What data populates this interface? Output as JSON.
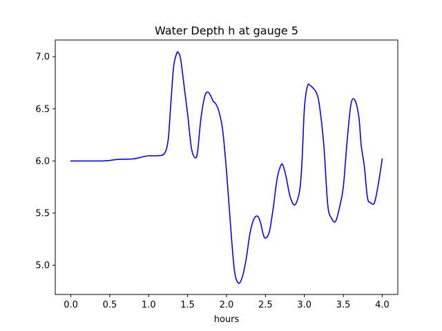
{
  "chart_data": {
    "type": "line",
    "title": "Water Depth h at gauge 5",
    "xlabel": "hours",
    "ylabel": "",
    "xlim": [
      -0.2,
      4.2
    ],
    "ylim": [
      4.72,
      7.16
    ],
    "grid": false,
    "x_ticks": [
      0.0,
      0.5,
      1.0,
      1.5,
      2.0,
      2.5,
      3.0,
      3.5,
      4.0
    ],
    "x_tick_labels": [
      "0.0",
      "0.5",
      "1.0",
      "1.5",
      "2.0",
      "2.5",
      "3.0",
      "3.5",
      "4.0"
    ],
    "y_ticks": [
      5.0,
      5.5,
      6.0,
      6.5,
      7.0
    ],
    "y_tick_labels": [
      "5.0",
      "5.5",
      "6.0",
      "6.5",
      "7.0"
    ],
    "series": [
      {
        "color": "#0000ff",
        "x": [
          0.0,
          0.2,
          0.4,
          0.5,
          0.6,
          0.8,
          0.9,
          1.0,
          1.1,
          1.2,
          1.25,
          1.28,
          1.32,
          1.36,
          1.38,
          1.41,
          1.45,
          1.5,
          1.55,
          1.6,
          1.63,
          1.67,
          1.72,
          1.76,
          1.8,
          1.83,
          1.86,
          1.9,
          1.95,
          2.0,
          2.05,
          2.1,
          2.15,
          2.2,
          2.25,
          2.3,
          2.35,
          2.4,
          2.44,
          2.47,
          2.5,
          2.55,
          2.6,
          2.65,
          2.7,
          2.73,
          2.77,
          2.82,
          2.88,
          2.94,
          2.97,
          3.0,
          3.04,
          3.08,
          3.11,
          3.15,
          3.19,
          3.25,
          3.3,
          3.35,
          3.4,
          3.45,
          3.5,
          3.55,
          3.6,
          3.65,
          3.7,
          3.73,
          3.77,
          3.81,
          3.85,
          3.9,
          3.95,
          4.0
        ],
        "y": [
          6.0,
          6.0,
          6.0,
          6.005,
          6.015,
          6.02,
          6.035,
          6.05,
          6.05,
          6.07,
          6.2,
          6.5,
          6.9,
          7.03,
          7.04,
          6.98,
          6.75,
          6.45,
          6.12,
          6.03,
          6.1,
          6.4,
          6.62,
          6.66,
          6.62,
          6.57,
          6.55,
          6.48,
          6.3,
          5.9,
          5.4,
          4.96,
          4.83,
          4.88,
          5.05,
          5.3,
          5.44,
          5.47,
          5.4,
          5.3,
          5.26,
          5.32,
          5.55,
          5.83,
          5.96,
          5.95,
          5.83,
          5.65,
          5.58,
          5.72,
          6.0,
          6.5,
          6.72,
          6.72,
          6.7,
          6.66,
          6.55,
          6.15,
          5.58,
          5.45,
          5.42,
          5.55,
          5.75,
          6.2,
          6.55,
          6.58,
          6.42,
          6.15,
          5.95,
          5.65,
          5.6,
          5.6,
          5.78,
          6.02
        ]
      }
    ]
  }
}
